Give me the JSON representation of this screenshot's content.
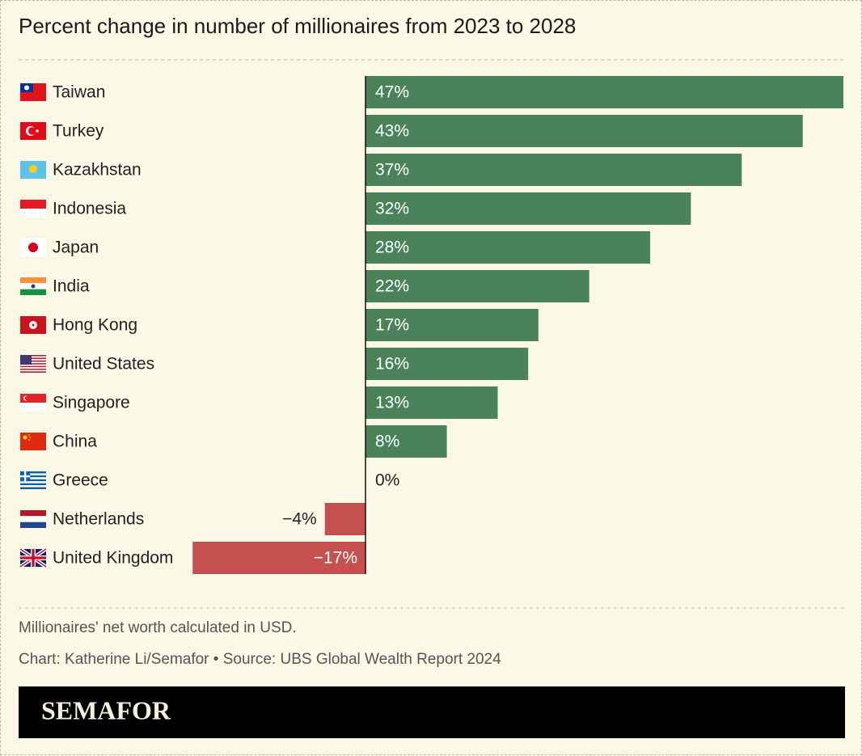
{
  "chart_data": {
    "type": "bar",
    "orientation": "horizontal",
    "title": "Percent change in number of millionaires from 2023 to 2028",
    "categories": [
      "Taiwan",
      "Turkey",
      "Kazakhstan",
      "Indonesia",
      "Japan",
      "India",
      "Hong Kong",
      "United States",
      "Singapore",
      "China",
      "Greece",
      "Netherlands",
      "United Kingdom"
    ],
    "values": [
      47,
      43,
      37,
      32,
      28,
      22,
      17,
      16,
      13,
      8,
      0,
      -4,
      -17
    ],
    "value_labels": [
      "47%",
      "43%",
      "37%",
      "32%",
      "28%",
      "22%",
      "17%",
      "16%",
      "13%",
      "8%",
      "0%",
      "−4%",
      "−17%"
    ],
    "positive_color": "#4a8259",
    "negative_color": "#c45150",
    "note": "Millionaires' net worth calculated in USD.",
    "source": "Chart: Katherine Li/Semafor • Source: UBS Global Wealth Report 2024"
  },
  "footer": {
    "brand": "SEMAFOR"
  }
}
